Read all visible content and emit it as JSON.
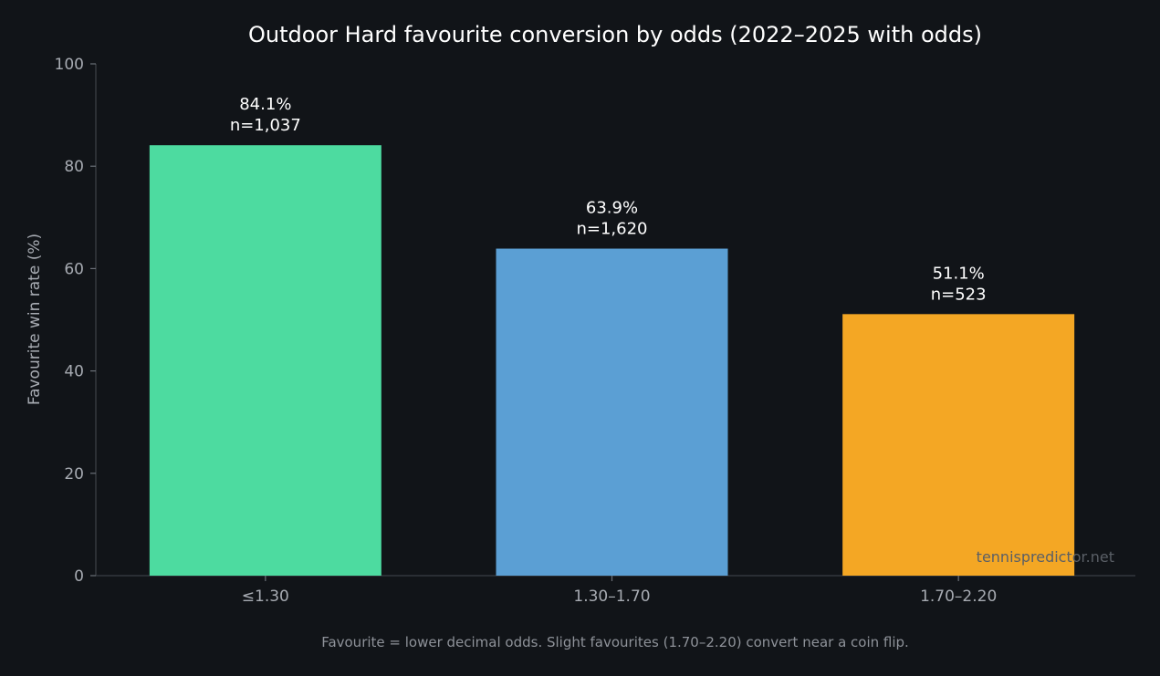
{
  "chart_data": {
    "type": "bar",
    "title": "Outdoor Hard favourite conversion by odds (2022–2025 with odds)",
    "xlabel": "",
    "ylabel": "Favourite win rate (%)",
    "ylim": [
      0,
      100
    ],
    "yticks": [
      "0",
      "20",
      "40",
      "60",
      "80",
      "100"
    ],
    "categories": [
      "≤1.30",
      "1.30–1.70",
      "1.70–2.20"
    ],
    "values": [
      84.1,
      63.9,
      51.1
    ],
    "value_labels": [
      "84.1%",
      "63.9%",
      "51.1%"
    ],
    "count_labels": [
      "n=1,037",
      "n=1,620",
      "n=523"
    ],
    "colors": [
      "#4ddba0",
      "#5b9fd4",
      "#f4a724"
    ],
    "grid": false,
    "footnote": "Favourite = lower decimal odds. Slight favourites (1.70–2.20) convert near a coin flip.",
    "watermark": "tennispredictor.net"
  }
}
